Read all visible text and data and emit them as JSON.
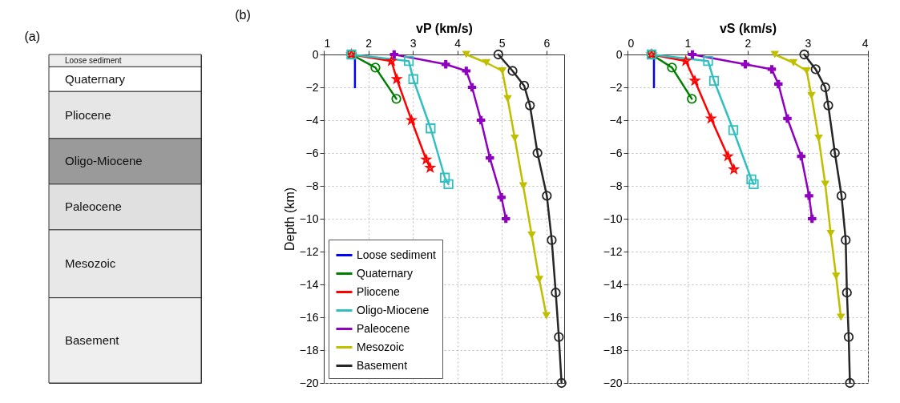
{
  "chart_data": [
    {
      "type": "other",
      "title": "(a)",
      "annotations": [
        "Loose sediment",
        "Quaternary",
        "Pliocene",
        "Oligo-Miocene",
        "Paleocene",
        "Mesozoic",
        "Basement"
      ]
    },
    {
      "type": "line",
      "title": "(b)",
      "xlabel": "vP (km/s)",
      "ylabel": "Depth (km)",
      "xlim": [
        1,
        6.4
      ],
      "xticks": [
        1,
        2,
        3,
        4,
        5,
        6
      ],
      "ylim": [
        -20,
        0
      ],
      "yticks": [
        0,
        -2,
        -4,
        -6,
        -8,
        -10,
        -12,
        -14,
        -16,
        -18,
        -20
      ],
      "grid": true,
      "legend": "bottom left",
      "series": [
        {
          "name": "Loose sediment",
          "color": "#0000ff",
          "marker": "none",
          "x": [
            1.7,
            1.7
          ],
          "values": [
            0,
            -2
          ]
        },
        {
          "name": "Quaternary",
          "color": "#007f00",
          "marker": "circle",
          "x": [
            1.62,
            2.16,
            2.63
          ],
          "values": [
            0,
            -0.8,
            -2.7
          ]
        },
        {
          "name": "Pliocene",
          "color": "#ff0000",
          "marker": "star",
          "x": [
            1.62,
            2.52,
            2.64,
            2.97,
            3.3,
            3.39
          ],
          "values": [
            0,
            -0.4,
            -1.5,
            -4.0,
            -6.4,
            -6.9
          ]
        },
        {
          "name": "Oligo-Miocene",
          "color": "#33bfbf",
          "marker": "square",
          "x": [
            1.62,
            2.91,
            3.01,
            3.4,
            3.72,
            3.8
          ],
          "values": [
            0,
            -0.4,
            -1.5,
            -4.5,
            -7.5,
            -7.9
          ]
        },
        {
          "name": "Paleocene",
          "color": "#8f00bf",
          "marker": "cross",
          "x": [
            2.58,
            3.74,
            4.2,
            4.33,
            4.53,
            4.73,
            4.99,
            5.09
          ],
          "values": [
            0,
            -0.6,
            -1.0,
            -2.0,
            -4.0,
            -6.3,
            -8.7,
            -10.0
          ]
        },
        {
          "name": "Mesozoic",
          "color": "#bfbf00",
          "marker": "triangle",
          "x": [
            4.2,
            4.65,
            5.01,
            5.13,
            5.29,
            5.48,
            5.67,
            5.84,
            6.0
          ],
          "values": [
            0,
            -0.5,
            -1.0,
            -2.7,
            -5.1,
            -8.0,
            -11.0,
            -13.7,
            -15.9
          ]
        },
        {
          "name": "Basement",
          "color": "#262626",
          "marker": "circle",
          "x": [
            4.92,
            5.24,
            5.5,
            5.63,
            5.8,
            6.01,
            6.12,
            6.21,
            6.28,
            6.34
          ],
          "values": [
            0,
            -1.0,
            -1.9,
            -3.1,
            -6.0,
            -8.6,
            -11.3,
            -14.5,
            -17.2,
            -20.0
          ]
        }
      ]
    },
    {
      "type": "line",
      "xlabel": "vS (km/s)",
      "xlim": [
        0,
        4
      ],
      "xticks": [
        0,
        1,
        2,
        3,
        4
      ],
      "ylim": [
        -20,
        0
      ],
      "yticks": [
        0,
        -2,
        -4,
        -6,
        -8,
        -10,
        -12,
        -14,
        -16,
        -18,
        -20
      ],
      "grid": true,
      "series": [
        {
          "color": "#0000ff",
          "marker": "none",
          "x": [
            0.44,
            0.44
          ],
          "values": [
            0,
            -2
          ]
        },
        {
          "color": "#007f00",
          "marker": "circle",
          "x": [
            0.4,
            0.74,
            1.07
          ],
          "values": [
            0,
            -0.8,
            -2.7
          ]
        },
        {
          "color": "#ff0000",
          "marker": "star",
          "x": [
            0.4,
            0.97,
            1.12,
            1.39,
            1.67,
            1.77
          ],
          "values": [
            0,
            -0.4,
            -1.6,
            -3.9,
            -6.2,
            -7.0
          ]
        },
        {
          "color": "#33bfbf",
          "marker": "square",
          "x": [
            0.4,
            1.34,
            1.44,
            1.76,
            2.06,
            2.1
          ],
          "values": [
            0,
            -0.4,
            -1.6,
            -4.6,
            -7.6,
            -7.9
          ]
        },
        {
          "color": "#8f00bf",
          "marker": "cross",
          "x": [
            1.08,
            1.96,
            2.4,
            2.51,
            2.66,
            2.89,
            3.02,
            3.07
          ],
          "values": [
            0,
            -0.6,
            -0.9,
            -1.8,
            -3.9,
            -6.2,
            -8.6,
            -10.0
          ]
        },
        {
          "color": "#bfbf00",
          "marker": "triangle",
          "x": [
            2.45,
            2.76,
            2.98,
            3.06,
            3.18,
            3.29,
            3.38,
            3.47,
            3.55
          ],
          "values": [
            0,
            -0.5,
            -1.0,
            -2.5,
            -5.1,
            -7.9,
            -10.9,
            -13.5,
            -16.0
          ]
        },
        {
          "color": "#262626",
          "marker": "circle",
          "x": [
            2.94,
            3.13,
            3.29,
            3.34,
            3.45,
            3.56,
            3.63,
            3.65,
            3.68,
            3.7
          ],
          "values": [
            0,
            -0.9,
            -2.0,
            -3.1,
            -6.0,
            -8.6,
            -11.3,
            -14.5,
            -17.2,
            -20.0
          ]
        }
      ]
    }
  ]
}
